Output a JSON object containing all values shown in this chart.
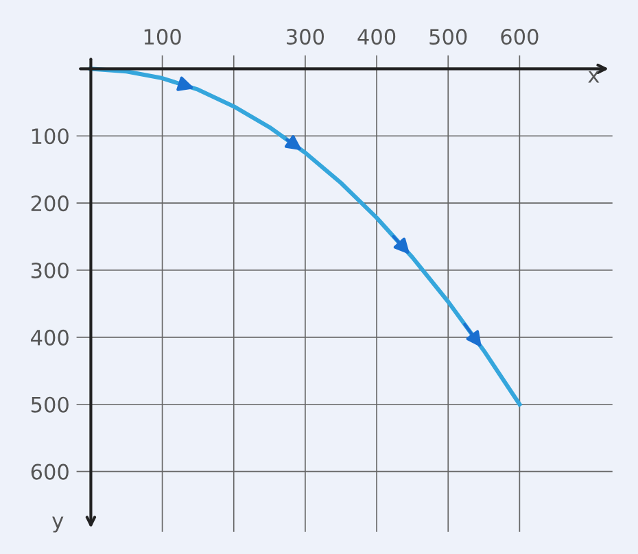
{
  "chart_data": {
    "type": "line",
    "xlabel": "x",
    "ylabel": "y",
    "x": [
      0,
      50,
      100,
      150,
      200,
      250,
      300,
      350,
      400,
      450,
      500,
      550,
      600
    ],
    "series": [
      {
        "color": "#35a6dc",
        "values": [
          0,
          4,
          14,
          31,
          56,
          87,
          125,
          170,
          222,
          281,
          347,
          420,
          500
        ]
      }
    ],
    "xlim": [
      -20,
      730
    ],
    "ylim": [
      690,
      -20
    ],
    "xticks": [
      100,
      {
        "value": 200,
        "label": null
      },
      300,
      400,
      500,
      600
    ],
    "yticks": [
      100,
      200,
      300,
      400,
      500,
      600
    ],
    "grid": true,
    "marker": "none",
    "line_style": "solid"
  }
}
